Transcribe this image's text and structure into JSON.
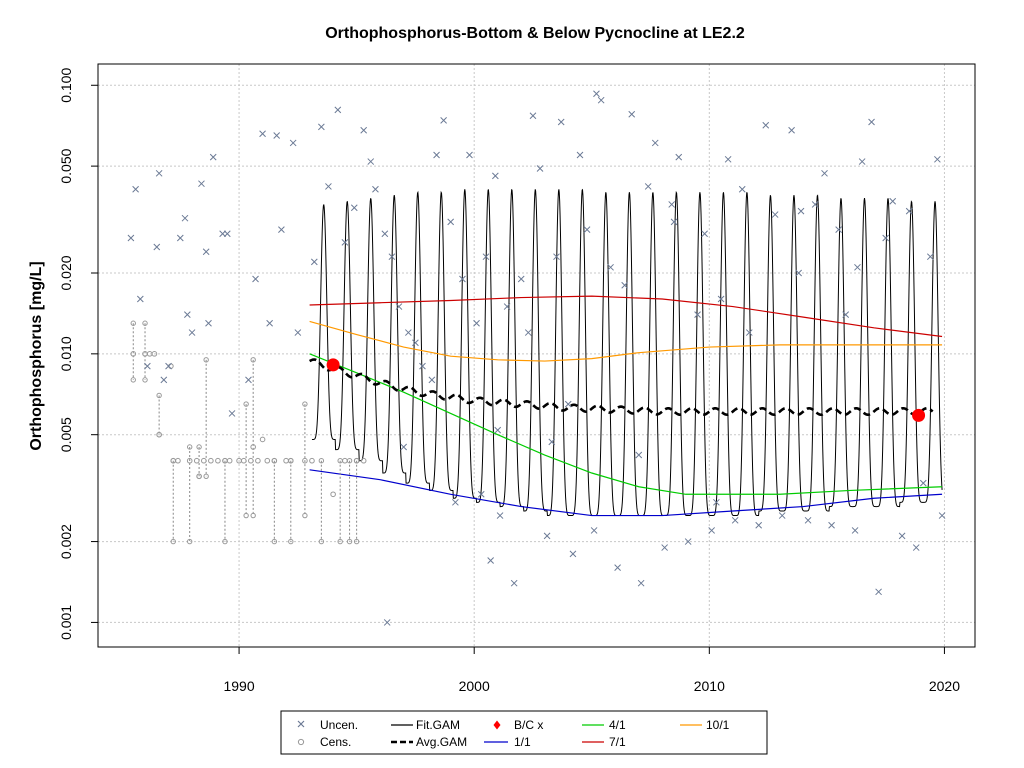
{
  "chart_data": {
    "type": "scatter",
    "title": "Orthophosphorus-Bottom & Below Pycnocline at LE2.2",
    "xlabel": "",
    "ylabel": "Orthophosphorus [mg/L]",
    "xlim": [
      1984.0,
      2021.3
    ],
    "ylim": [
      0.00081,
      0.12
    ],
    "y_scale": "log",
    "grid": true,
    "x_ticks": [
      "1990",
      "2000",
      "2010",
      "2020"
    ],
    "y_ticks": [
      "0.001",
      "0.002",
      "0.005",
      "0.010",
      "0.020",
      "0.050",
      "0.100"
    ],
    "legend": {
      "placement": "bottom",
      "entries": [
        "Uncen.",
        "Cens.",
        "Fit.GAM",
        "Avg.GAM",
        "B/C x",
        "1/1",
        "4/1",
        "7/1",
        "10/1"
      ]
    },
    "colors": {
      "uncensored": "#6b7a95",
      "censored": "#999999",
      "fit_gam": "#000000",
      "avg_gam": "#000000",
      "bc": "#ff0000",
      "ratio_1_1": "#0000cc",
      "ratio_4_1": "#00cc00",
      "ratio_7_1": "#cc0000",
      "ratio_10_1": "#ff9900",
      "grid": "#c8c8c8"
    },
    "series": [
      {
        "name": "1/1",
        "x": [
          1993.0,
          1996.0,
          1999.0,
          2002.0,
          2005.0,
          2008.0,
          2011.0,
          2014.0,
          2017.0,
          2019.9
        ],
        "y": [
          0.0037,
          0.0034,
          0.003,
          0.0027,
          0.0025,
          0.0025,
          0.0026,
          0.0027,
          0.0029,
          0.003
        ]
      },
      {
        "name": "4/1",
        "x": [
          1993.0,
          1995.0,
          1997.0,
          1999.0,
          2001.0,
          2003.0,
          2005.0,
          2007.0,
          2009.0,
          2011.0,
          2013.0,
          2016.0,
          2019.9
        ],
        "y": [
          0.01,
          0.0085,
          0.0072,
          0.006,
          0.005,
          0.0042,
          0.0036,
          0.0032,
          0.003,
          0.003,
          0.003,
          0.0031,
          0.0032
        ]
      },
      {
        "name": "7/1",
        "x": [
          1993.0,
          1996.0,
          1999.0,
          2002.0,
          2005.0,
          2008.0,
          2011.0,
          2014.0,
          2017.0,
          2019.9
        ],
        "y": [
          0.0152,
          0.0155,
          0.0158,
          0.0162,
          0.0164,
          0.016,
          0.015,
          0.0137,
          0.0125,
          0.0116
        ]
      },
      {
        "name": "10/1",
        "x": [
          1993.0,
          1995.0,
          1997.0,
          1999.0,
          2001.0,
          2003.0,
          2005.0,
          2007.0,
          2010.0,
          2013.0,
          2016.0,
          2019.9
        ],
        "y": [
          0.0132,
          0.0118,
          0.0106,
          0.0098,
          0.0095,
          0.0094,
          0.0096,
          0.0101,
          0.0106,
          0.0108,
          0.0108,
          0.0108
        ]
      },
      {
        "name": "Avg.GAM",
        "x": [
          1993.0,
          1994.0,
          1995.0,
          1996.0,
          1997.0,
          1998.0,
          1999.0,
          2000.0,
          2002.0,
          2004.0,
          2006.0,
          2008.0,
          2010.0,
          2012.0,
          2014.0,
          2016.0,
          2018.0,
          2019.5
        ],
        "y": [
          0.0094,
          0.0088,
          0.0083,
          0.0078,
          0.0074,
          0.0071,
          0.0069,
          0.0067,
          0.0065,
          0.0063,
          0.0062,
          0.0061,
          0.0061,
          0.0061,
          0.0061,
          0.0061,
          0.0061,
          0.0061
        ]
      },
      {
        "name": "Fit.GAM",
        "x_start": 1993.1,
        "x_end": 2019.9,
        "y_peaks": [
          0.036,
          0.037,
          0.038,
          0.039,
          0.04,
          0.04,
          0.041,
          0.041,
          0.041,
          0.041,
          0.041,
          0.041,
          0.04,
          0.04,
          0.04,
          0.04,
          0.04,
          0.04,
          0.04,
          0.039,
          0.039,
          0.039,
          0.038,
          0.038,
          0.038,
          0.037,
          0.037
        ],
        "y_troughs": [
          0.0048,
          0.0044,
          0.004,
          0.0036,
          0.0033,
          0.0031,
          0.0029,
          0.0028,
          0.0027,
          0.0026,
          0.0025,
          0.0025,
          0.0025,
          0.0025,
          0.0025,
          0.0025,
          0.0025,
          0.0025,
          0.0025,
          0.0026,
          0.0026,
          0.0026,
          0.0027,
          0.0027,
          0.0027,
          0.0028,
          0.0028
        ]
      }
    ],
    "bc_points": {
      "x": [
        1994.0,
        2018.9
      ],
      "y": [
        0.0091,
        0.0059
      ]
    },
    "uncensored_points": {
      "x": [
        1985.4,
        1985.6,
        1985.8,
        1986.1,
        1986.5,
        1986.6,
        1986.8,
        1987.0,
        1987.5,
        1987.7,
        1987.8,
        1988.0,
        1988.4,
        1988.6,
        1988.7,
        1988.9,
        1989.3,
        1989.5,
        1989.7,
        1990.4,
        1990.7,
        1991.0,
        1991.3,
        1991.6,
        1991.8,
        1992.3,
        1992.5,
        1993.2,
        1993.5,
        1993.8,
        1994.2,
        1994.5,
        1994.9,
        1995.3,
        1995.6,
        1995.8,
        1996.2,
        1996.5,
        1996.8,
        1997.2,
        1997.5,
        1997.8,
        1998.2,
        1998.4,
        1998.7,
        1999.0,
        1999.5,
        1999.8,
        2000.1,
        2000.3,
        2000.5,
        2000.7,
        2000.9,
        2001.1,
        2001.4,
        2001.7,
        2002.0,
        2002.3,
        2002.5,
        2002.8,
        2003.1,
        2003.5,
        2003.7,
        2004.2,
        2004.5,
        2004.8,
        2005.1,
        2005.4,
        2005.8,
        2006.1,
        2006.4,
        2006.7,
        2007.1,
        2007.4,
        2007.7,
        2008.1,
        2008.4,
        2008.7,
        2009.1,
        2009.5,
        2009.8,
        2010.1,
        2010.5,
        2010.8,
        2011.1,
        2011.4,
        2011.7,
        2012.1,
        2012.4,
        2012.8,
        2013.1,
        2013.5,
        2013.8,
        2014.2,
        2014.5,
        2014.9,
        2015.2,
        2015.5,
        2015.8,
        2016.2,
        2016.5,
        2016.9,
        2017.2,
        2017.5,
        2017.8,
        2018.2,
        2018.5,
        2018.8,
        2019.1,
        2019.4,
        2019.7,
        2019.9,
        2005.2,
        2007.0,
        2008.5,
        2010.3,
        2013.9,
        2016.3,
        2003.3,
        1999.2,
        2001.0,
        2004.0,
        1996.3,
        1997.0
      ],
      "y": [
        0.027,
        0.041,
        0.016,
        0.009,
        0.025,
        0.047,
        0.008,
        0.009,
        0.027,
        0.032,
        0.014,
        0.012,
        0.043,
        0.024,
        0.013,
        0.054,
        0.028,
        0.028,
        0.006,
        0.008,
        0.019,
        0.066,
        0.013,
        0.065,
        0.029,
        0.061,
        0.012,
        0.022,
        0.07,
        0.042,
        0.081,
        0.026,
        0.035,
        0.068,
        0.052,
        0.041,
        0.028,
        0.023,
        0.015,
        0.012,
        0.011,
        0.009,
        0.008,
        0.055,
        0.074,
        0.031,
        0.019,
        0.055,
        0.013,
        0.003,
        0.023,
        0.0017,
        0.046,
        0.0025,
        0.015,
        0.0014,
        0.019,
        0.012,
        0.077,
        0.049,
        0.0021,
        0.023,
        0.073,
        0.0018,
        0.055,
        0.029,
        0.0022,
        0.088,
        0.021,
        0.0016,
        0.018,
        0.078,
        0.0014,
        0.042,
        0.061,
        0.0019,
        0.036,
        0.054,
        0.002,
        0.014,
        0.028,
        0.0022,
        0.016,
        0.053,
        0.0024,
        0.041,
        0.012,
        0.0023,
        0.071,
        0.033,
        0.0025,
        0.068,
        0.02,
        0.0024,
        0.036,
        0.047,
        0.0023,
        0.029,
        0.014,
        0.0022,
        0.052,
        0.073,
        0.0013,
        0.027,
        0.037,
        0.0021,
        0.034,
        0.0019,
        0.0033,
        0.023,
        0.053,
        0.0025,
        0.093,
        0.0042,
        0.031,
        0.0028,
        0.034,
        0.021,
        0.0047,
        0.0028,
        0.0052,
        0.0065,
        0.001,
        0.0045
      ]
    },
    "censored_points": {
      "x": [
        1985.5,
        1986.0,
        1986.2,
        1986.4,
        1987.2,
        1987.4,
        1987.9,
        1988.2,
        1988.5,
        1988.8,
        1989.1,
        1989.4,
        1989.6,
        1990.0,
        1990.2,
        1990.5,
        1990.8,
        1991.2,
        1991.5,
        1992.0,
        1992.2,
        1992.8,
        1993.1,
        1994.5,
        1995.0,
        1995.3,
        1986.6,
        1988.3,
        1990.6,
        1991.0,
        1994.0,
        1987.1
      ],
      "y": [
        0.01,
        0.01,
        0.01,
        0.01,
        0.004,
        0.004,
        0.004,
        0.004,
        0.004,
        0.004,
        0.004,
        0.004,
        0.004,
        0.004,
        0.004,
        0.004,
        0.004,
        0.004,
        0.004,
        0.004,
        0.004,
        0.004,
        0.004,
        0.004,
        0.004,
        0.004,
        0.005,
        0.0035,
        0.0045,
        0.0048,
        0.003,
        0.009
      ]
    },
    "censored_ranges": [
      {
        "x": 1985.5,
        "low": 0.008,
        "high": 0.013
      },
      {
        "x": 1986.0,
        "low": 0.008,
        "high": 0.013
      },
      {
        "x": 1986.6,
        "low": 0.005,
        "high": 0.007
      },
      {
        "x": 1987.2,
        "low": 0.002,
        "high": 0.004
      },
      {
        "x": 1987.9,
        "low": 0.002,
        "high": 0.0045
      },
      {
        "x": 1988.3,
        "low": 0.0035,
        "high": 0.0045
      },
      {
        "x": 1988.6,
        "low": 0.0035,
        "high": 0.0095
      },
      {
        "x": 1989.4,
        "low": 0.002,
        "high": 0.004
      },
      {
        "x": 1990.3,
        "low": 0.0025,
        "high": 0.0065
      },
      {
        "x": 1990.6,
        "low": 0.0025,
        "high": 0.0095
      },
      {
        "x": 1991.5,
        "low": 0.002,
        "high": 0.004
      },
      {
        "x": 1992.2,
        "low": 0.002,
        "high": 0.004
      },
      {
        "x": 1992.8,
        "low": 0.0025,
        "high": 0.0065
      },
      {
        "x": 1993.5,
        "low": 0.002,
        "high": 0.004
      },
      {
        "x": 1994.3,
        "low": 0.002,
        "high": 0.004
      },
      {
        "x": 1994.7,
        "low": 0.002,
        "high": 0.004
      },
      {
        "x": 1995.0,
        "low": 0.002,
        "high": 0.004
      }
    ]
  }
}
